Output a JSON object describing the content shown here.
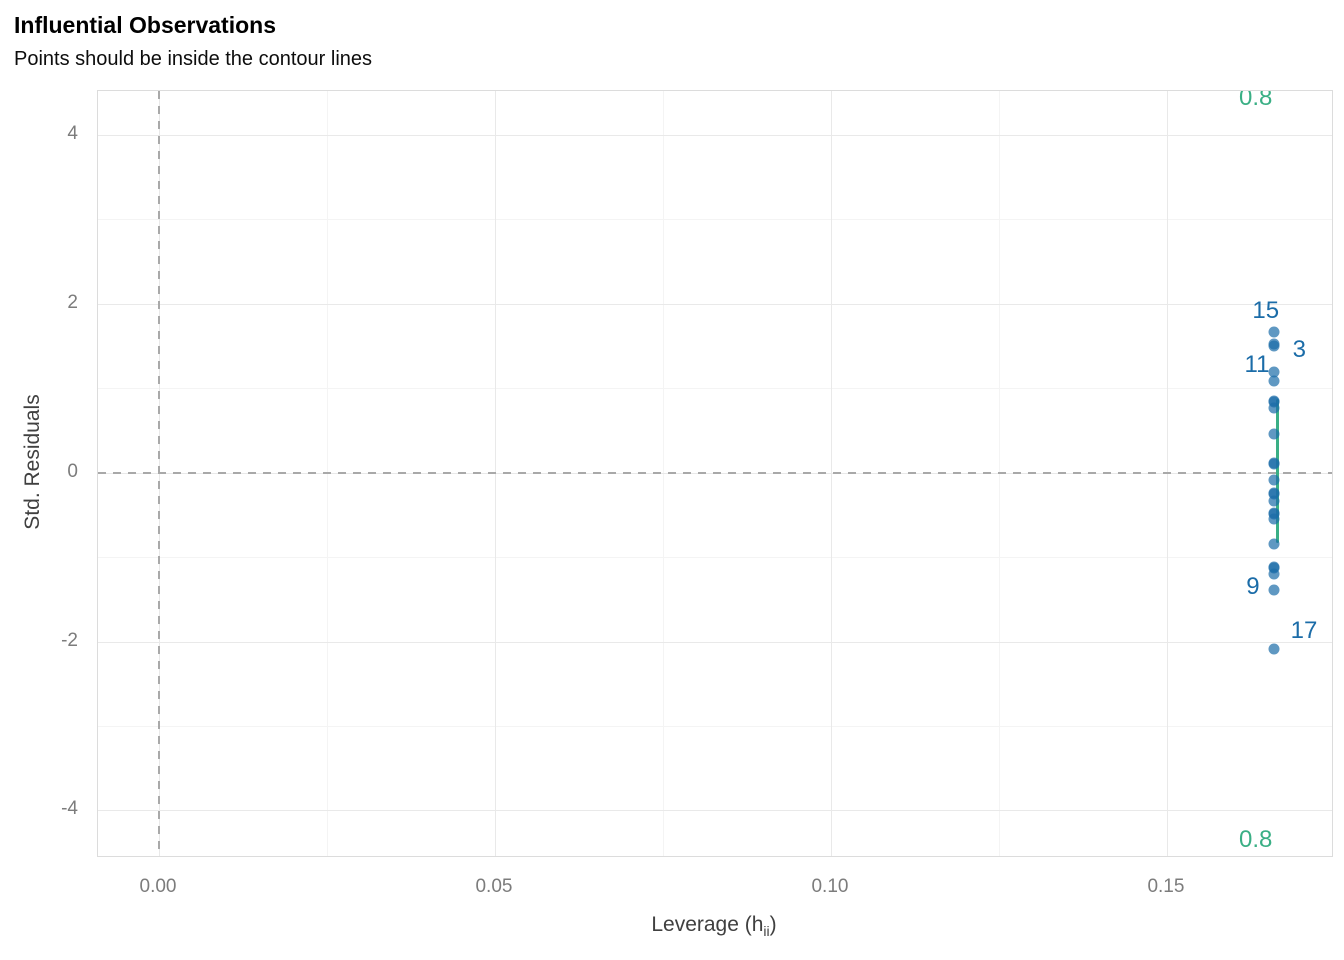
{
  "title": "Influential Observations",
  "subtitle": "Points should be inside the contour lines",
  "axes": {
    "x": {
      "title_main": "Leverage (h",
      "title_sub": "ii",
      "title_end": ")"
    },
    "y": {
      "title": "Std. Residuals"
    }
  },
  "colors": {
    "point_blue": "#1b6ca8",
    "point_fill_alpha": 0.7,
    "label_blue": "#1b6ca8",
    "contour_green": "#3aaf85",
    "axis_text": "#7c7c7c",
    "axis_title": "#404040",
    "grid_major": "#e9e9e9",
    "grid_minor": "#f4f4f4",
    "ref_line": "#a9a9a9",
    "panel_border": "#dcdcdc"
  },
  "chart_data": {
    "type": "scatter",
    "title": "Influential Observations",
    "subtitle": "Points should be inside the contour lines",
    "xlabel": "Leverage (h_ii)",
    "ylabel": "Std. Residuals",
    "xlim": [
      -0.00908,
      0.17456
    ],
    "ylim": [
      -4.54,
      4.52
    ],
    "grid": true,
    "x_ticks": {
      "values": [
        0.0,
        0.05,
        0.1,
        0.15
      ],
      "labels": [
        "0.00",
        "0.05",
        "0.10",
        "0.15"
      ]
    },
    "x_minor_ticks": [
      0.025,
      0.075,
      0.125
    ],
    "y_ticks": {
      "values": [
        -4,
        -2,
        0,
        2,
        4
      ],
      "labels": [
        "-4",
        "-2",
        "0",
        "2",
        "4"
      ]
    },
    "y_minor_ticks": [
      -3,
      -1,
      1,
      3
    ],
    "reference_lines": {
      "vline_x": 0.0,
      "hline_y": 0.0,
      "style": "dashed"
    },
    "points": [
      {
        "h": 0.166,
        "r": 1.66,
        "label": "15"
      },
      {
        "h": 0.166,
        "r": 1.52,
        "label": "3"
      },
      {
        "h": 0.166,
        "r": 1.5
      },
      {
        "h": 0.166,
        "r": 1.19,
        "label": "11"
      },
      {
        "h": 0.166,
        "r": 1.08
      },
      {
        "h": 0.166,
        "r": 0.85
      },
      {
        "h": 0.166,
        "r": 0.84
      },
      {
        "h": 0.166,
        "r": 0.76
      },
      {
        "h": 0.166,
        "r": 0.46
      },
      {
        "h": 0.166,
        "r": 0.11
      },
      {
        "h": 0.166,
        "r": 0.1
      },
      {
        "h": 0.166,
        "r": -0.09
      },
      {
        "h": 0.166,
        "r": -0.24
      },
      {
        "h": 0.166,
        "r": -0.25
      },
      {
        "h": 0.166,
        "r": -0.34
      },
      {
        "h": 0.166,
        "r": -0.48
      },
      {
        "h": 0.166,
        "r": -0.49
      },
      {
        "h": 0.166,
        "r": -0.55
      },
      {
        "h": 0.166,
        "r": -0.84
      },
      {
        "h": 0.166,
        "r": -1.12
      },
      {
        "h": 0.166,
        "r": -1.13
      },
      {
        "h": 0.166,
        "r": -1.2
      },
      {
        "h": 0.166,
        "r": -1.39,
        "label": "9"
      },
      {
        "h": 0.166,
        "r": -2.09,
        "label": "17"
      }
    ],
    "point_label_positions": [
      {
        "text": "15",
        "h": 0.1647,
        "r": 1.92
      },
      {
        "text": "3",
        "h": 0.1697,
        "r": 1.45
      },
      {
        "text": "11",
        "h": 0.1634,
        "r": 1.27
      },
      {
        "text": "9",
        "h": 0.1628,
        "r": -1.35
      },
      {
        "text": "17",
        "h": 0.1704,
        "r": -1.88
      }
    ],
    "contour": {
      "level_label": "0.8",
      "segment": {
        "h": 0.16645,
        "r_from": 0.875,
        "r_to": -0.835
      },
      "labels": [
        {
          "text": "0.8",
          "h": 0.1632,
          "r": 4.44
        },
        {
          "text": "0.8",
          "h": 0.1632,
          "r": -4.35
        }
      ]
    }
  }
}
